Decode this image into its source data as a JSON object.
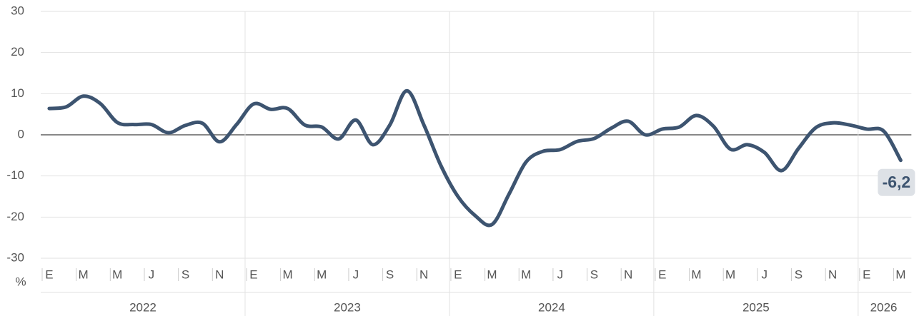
{
  "chart_data": {
    "type": "line",
    "ylabel": "%",
    "categories": [
      "E",
      null,
      "M",
      null,
      "M",
      null,
      "J",
      null,
      "S",
      null,
      "N",
      null,
      "E",
      null,
      "M",
      null,
      "M",
      null,
      "J",
      null,
      "S",
      null,
      "N",
      null,
      "E",
      null,
      "M",
      null,
      "M",
      null,
      "J",
      null,
      "S",
      null,
      "N",
      null,
      "E",
      null,
      "M",
      null,
      "M",
      null,
      "J",
      null,
      "S",
      null,
      "N",
      null,
      "E",
      null,
      "M"
    ],
    "years": [
      "2022",
      "2023",
      "2024",
      "2025",
      "2026"
    ],
    "series": [
      {
        "color": "#3d5470",
        "values": [
          6.4,
          6.8,
          9.4,
          7.6,
          3.0,
          2.5,
          2.5,
          0.5,
          2.3,
          2.8,
          -1.7,
          2.5,
          7.5,
          6.2,
          6.4,
          2.4,
          1.9,
          -1.0,
          3.6,
          -2.4,
          2.4,
          10.7,
          2.4,
          -7.5,
          -15.0,
          -19.6,
          -21.8,
          -14.4,
          -6.6,
          -4.0,
          -3.6,
          -1.6,
          -0.9,
          1.6,
          3.3,
          0,
          1.4,
          1.9,
          4.7,
          2.1,
          -3.5,
          -2.4,
          -4.3,
          -8.7,
          -3.3,
          1.7,
          2.9,
          2.4,
          1.4,
          0.9,
          -6.2
        ],
        "value_labels": [
          null,
          null,
          null,
          null,
          null,
          null,
          null,
          null,
          null,
          null,
          null,
          null,
          null,
          null,
          null,
          null,
          null,
          null,
          null,
          null,
          null,
          null,
          null,
          null,
          null,
          null,
          null,
          null,
          null,
          null,
          null,
          null,
          null,
          null,
          null,
          null,
          null,
          null,
          null,
          null,
          null,
          null,
          null,
          null,
          null,
          null,
          null,
          null,
          null,
          null,
          "-6,2"
        ]
      }
    ],
    "ylim": [
      -30,
      30
    ],
    "yticks": [
      30,
      20,
      10,
      0,
      -10,
      -20,
      -30
    ],
    "grid": true
  }
}
